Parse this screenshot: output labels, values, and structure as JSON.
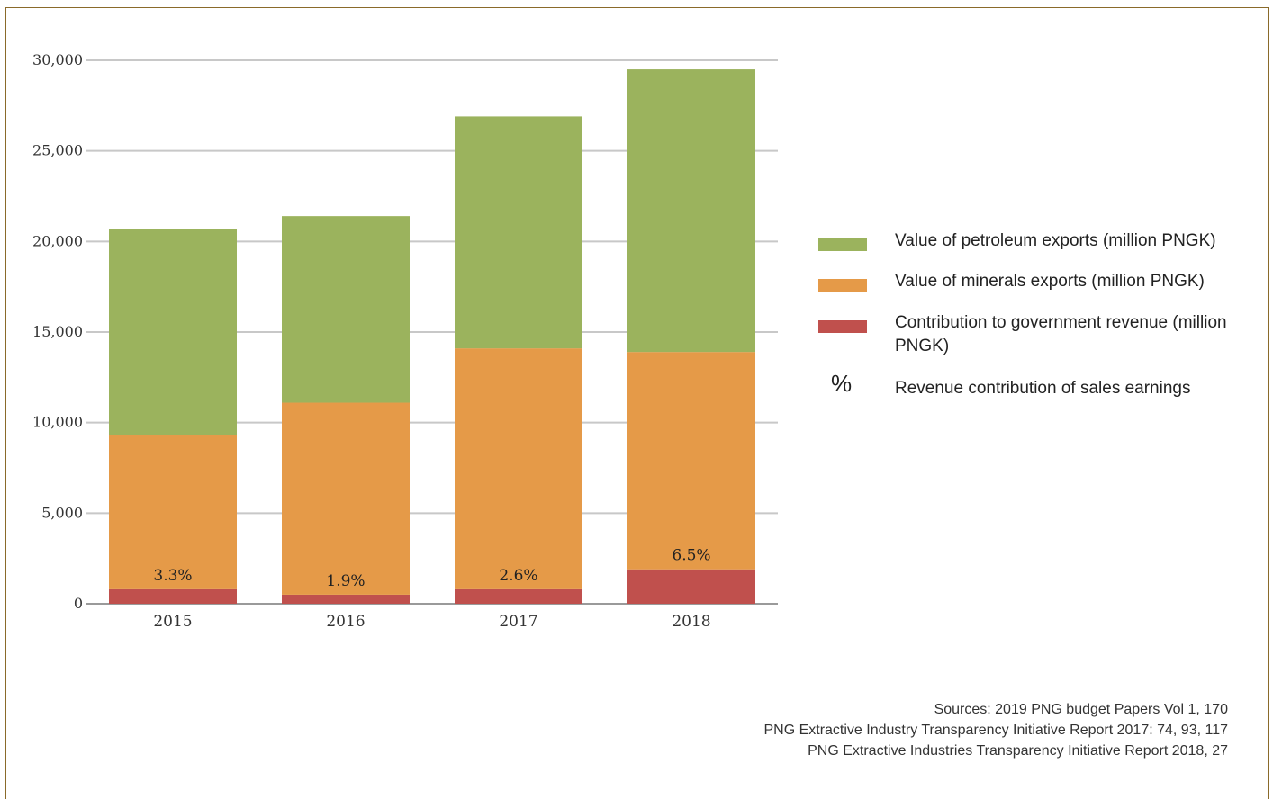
{
  "chart_data": {
    "type": "bar",
    "stacked": true,
    "categories": [
      "2015",
      "2016",
      "2017",
      "2018"
    ],
    "series": [
      {
        "name": "Contribution to government revenue (million PNGK)",
        "color": "#c0504d",
        "values": [
          800,
          500,
          800,
          1900
        ]
      },
      {
        "name": "Value of minerals exports (million PNGK)",
        "color": "#e59a48",
        "values": [
          8500,
          10600,
          13300,
          12000
        ]
      },
      {
        "name": "Value of petroleum exports (million PNGK)",
        "color": "#9bb35d",
        "values": [
          11400,
          10300,
          12800,
          15600
        ]
      }
    ],
    "bar_labels": [
      "3.3%",
      "1.9%",
      "2.6%",
      "6.5%"
    ],
    "y_ticks": [
      "0",
      "5,000",
      "10,000",
      "15,000",
      "20,000",
      "25,000",
      "30,000"
    ],
    "y_tick_values": [
      0,
      5000,
      10000,
      15000,
      20000,
      25000,
      30000
    ],
    "ylim": [
      0,
      30000
    ],
    "grid": true,
    "legend_placement": "right"
  },
  "legend": {
    "items": [
      {
        "label": "Value of petroleum exports (million PNGK)",
        "color": "#9bb35d"
      },
      {
        "label": "Value of minerals exports (million PNGK)",
        "color": "#e59a48"
      },
      {
        "label": "Contribution to government revenue (million PNGK)",
        "color": "#c0504d"
      }
    ],
    "pct_symbol": "%",
    "pct_label": "Revenue contribution of sales earnings"
  },
  "sources": [
    "Sources: 2019 PNG budget Papers Vol 1, 170",
    "PNG Extractive Industry Transparency Initiative Report 2017: 74, 93, 117",
    "PNG Extractive Industries Transparency Initiative Report 2018, 27"
  ]
}
